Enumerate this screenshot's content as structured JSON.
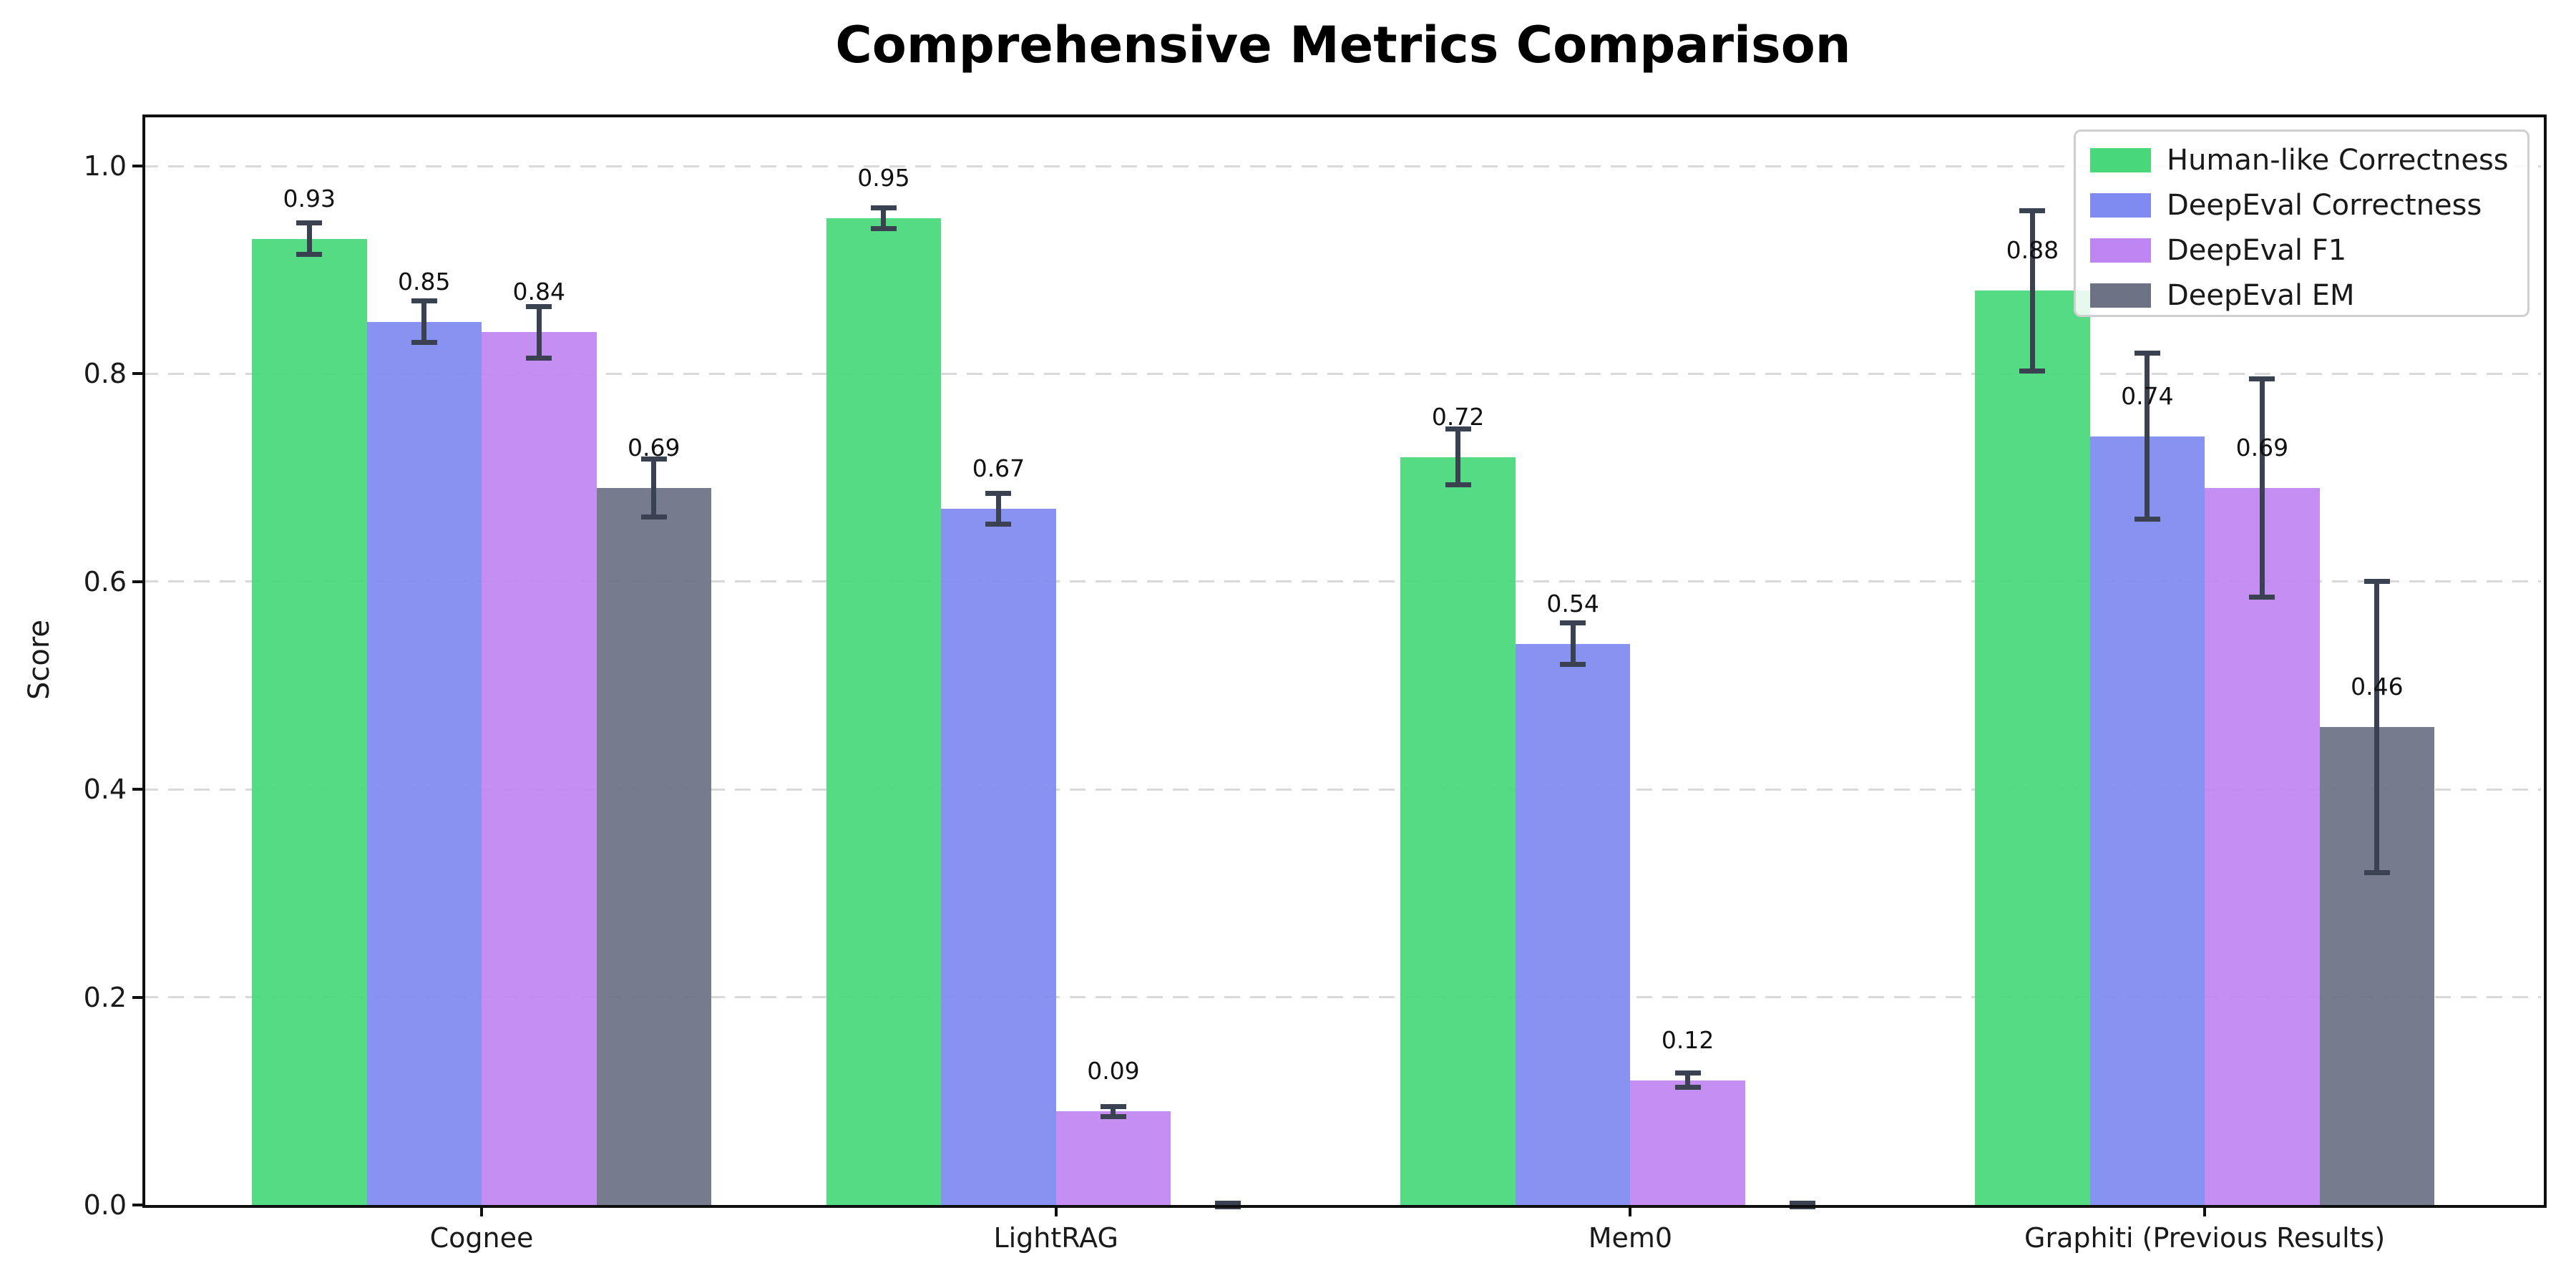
{
  "chart_data": {
    "type": "bar",
    "title": "Comprehensive Metrics Comparison",
    "ylabel": "Score",
    "xlabel": "",
    "categories": [
      "Cognee",
      "LightRAG",
      "Mem0",
      "Graphiti (Previous Results)"
    ],
    "series": [
      {
        "name": "Human-like Correctness",
        "color": "#48d87a",
        "values": [
          0.93,
          0.95,
          0.72,
          0.88
        ],
        "errors": [
          0.015,
          0.01,
          0.027,
          0.077
        ],
        "labels": [
          "0.93",
          "0.95",
          "0.72",
          "0.88"
        ]
      },
      {
        "name": "DeepEval Correctness",
        "color": "#7f8bf0",
        "values": [
          0.85,
          0.67,
          0.54,
          0.74
        ],
        "errors": [
          0.02,
          0.015,
          0.02,
          0.08
        ],
        "labels": [
          "0.85",
          "0.67",
          "0.54",
          "0.74"
        ]
      },
      {
        "name": "DeepEval F1",
        "color": "#bf85f2",
        "values": [
          0.84,
          0.09,
          0.12,
          0.69
        ],
        "errors": [
          0.025,
          0.005,
          0.007,
          0.105
        ],
        "labels": [
          "0.84",
          "0.09",
          "0.12",
          "0.69"
        ]
      },
      {
        "name": "DeepEval EM",
        "color": "#6c7284",
        "values": [
          0.69,
          0.0,
          0.0,
          0.46
        ],
        "errors": [
          0.028,
          0.002,
          0.002,
          0.14
        ],
        "labels": [
          "0.69",
          "",
          "",
          "0.46"
        ]
      }
    ],
    "yticks": [
      0.0,
      0.2,
      0.4,
      0.6,
      0.8,
      1.0
    ],
    "ytick_labels": [
      "0.0",
      "0.2",
      "0.4",
      "0.6",
      "0.8",
      "1.0"
    ],
    "ylim": [
      0.0,
      1.05
    ],
    "grid": "horizontal dashed",
    "legend_position": "upper right",
    "error_bar_color": "#3a4252"
  }
}
